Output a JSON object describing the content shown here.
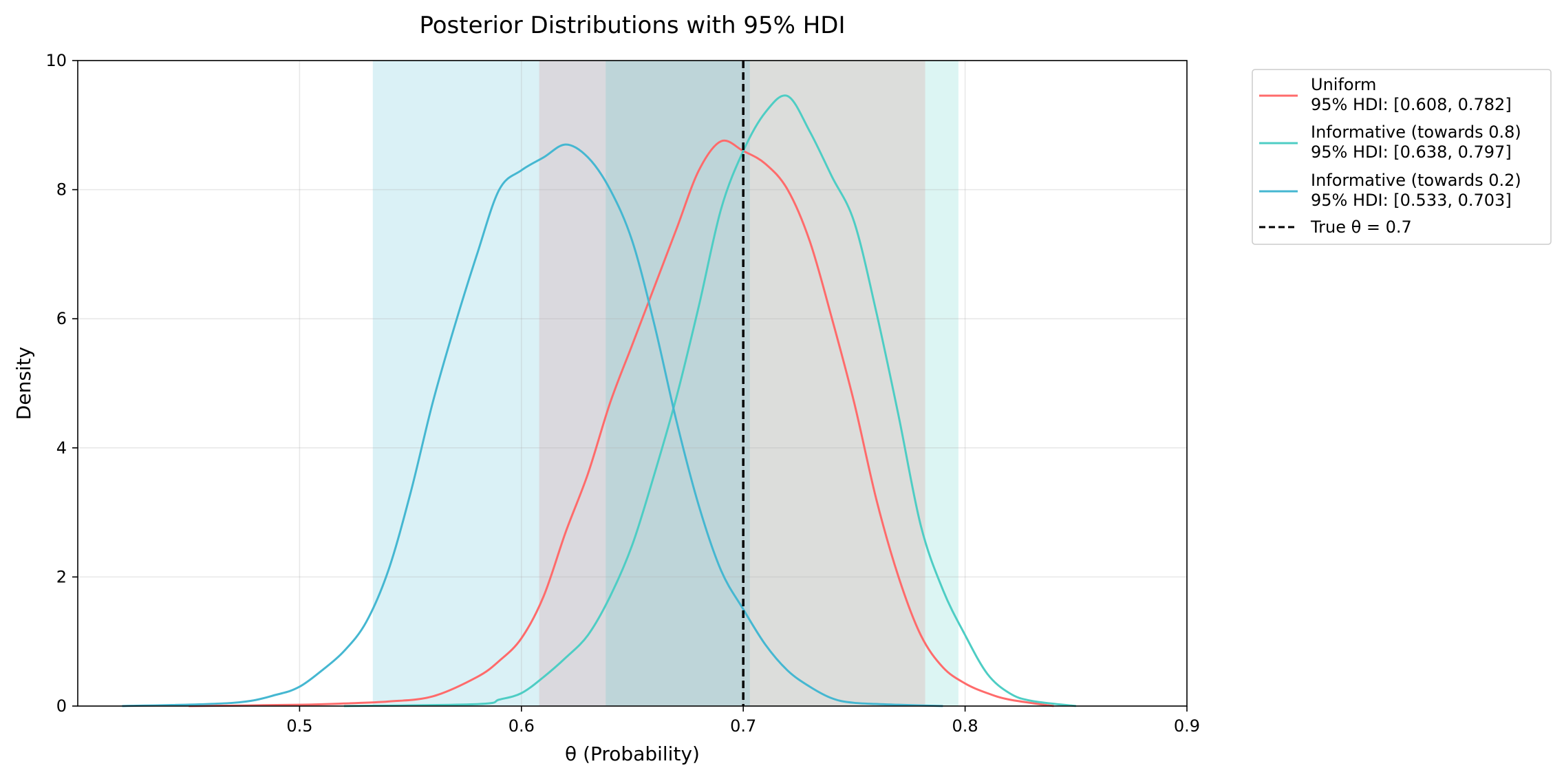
{
  "chart_data": {
    "type": "area",
    "title": "Posterior Distributions with 95% HDI",
    "xlabel": "θ (Probability)",
    "ylabel": "Density",
    "xlim": [
      0.4,
      0.9
    ],
    "ylim": [
      0,
      10
    ],
    "x_ticks": [
      0.5,
      0.6,
      0.7,
      0.8,
      0.9
    ],
    "x_tick_labels": [
      "0.5",
      "0.6",
      "0.7",
      "0.8",
      "0.9"
    ],
    "y_ticks": [
      0,
      2,
      4,
      6,
      8,
      10
    ],
    "y_tick_labels": [
      "0",
      "2",
      "4",
      "6",
      "8",
      "10"
    ],
    "grid": true,
    "legend_position": "outside-upper-right",
    "series": [
      {
        "name": "Uniform",
        "hdi_label": "95% HDI: [0.608, 0.782]",
        "color": "#ff6b6b",
        "hdi": [
          0.608,
          0.782
        ],
        "x": [
          0.45,
          0.5,
          0.52,
          0.54,
          0.56,
          0.58,
          0.59,
          0.6,
          0.61,
          0.62,
          0.63,
          0.64,
          0.65,
          0.66,
          0.67,
          0.68,
          0.69,
          0.7,
          0.71,
          0.72,
          0.73,
          0.74,
          0.75,
          0.76,
          0.77,
          0.78,
          0.79,
          0.8,
          0.81,
          0.82,
          0.84
        ],
        "y": [
          0.0,
          0.02,
          0.04,
          0.07,
          0.15,
          0.45,
          0.7,
          1.05,
          1.7,
          2.7,
          3.6,
          4.7,
          5.6,
          6.5,
          7.4,
          8.3,
          8.75,
          8.6,
          8.4,
          8.0,
          7.2,
          6.0,
          4.7,
          3.2,
          2.0,
          1.1,
          0.6,
          0.35,
          0.2,
          0.1,
          0.0
        ]
      },
      {
        "name": "Informative (towards 0.8)",
        "hdi_label": "95% HDI: [0.638, 0.797]",
        "color": "#4ecdc4",
        "hdi": [
          0.638,
          0.797
        ],
        "x": [
          0.52,
          0.58,
          0.59,
          0.6,
          0.61,
          0.62,
          0.63,
          0.64,
          0.65,
          0.66,
          0.67,
          0.68,
          0.69,
          0.7,
          0.71,
          0.72,
          0.73,
          0.74,
          0.75,
          0.76,
          0.77,
          0.78,
          0.79,
          0.8,
          0.81,
          0.82,
          0.83,
          0.85
        ],
        "y": [
          0.0,
          0.03,
          0.1,
          0.2,
          0.45,
          0.75,
          1.1,
          1.7,
          2.5,
          3.6,
          4.8,
          6.2,
          7.7,
          8.6,
          9.2,
          9.45,
          8.9,
          8.2,
          7.5,
          6.1,
          4.5,
          2.8,
          1.8,
          1.1,
          0.5,
          0.2,
          0.08,
          0.0
        ]
      },
      {
        "name": "Informative (towards 0.2)",
        "hdi_label": "95% HDI: [0.533, 0.703]",
        "color": "#45b7d1",
        "hdi": [
          0.533,
          0.703
        ],
        "x": [
          0.42,
          0.47,
          0.49,
          0.5,
          0.51,
          0.52,
          0.53,
          0.54,
          0.55,
          0.56,
          0.57,
          0.58,
          0.59,
          0.6,
          0.61,
          0.62,
          0.63,
          0.64,
          0.65,
          0.66,
          0.67,
          0.68,
          0.69,
          0.7,
          0.71,
          0.72,
          0.73,
          0.74,
          0.75,
          0.77,
          0.79
        ],
        "y": [
          0.0,
          0.05,
          0.18,
          0.3,
          0.55,
          0.85,
          1.3,
          2.1,
          3.3,
          4.7,
          5.9,
          7.0,
          8.0,
          8.3,
          8.5,
          8.7,
          8.5,
          8.0,
          7.2,
          5.9,
          4.4,
          3.1,
          2.1,
          1.5,
          0.95,
          0.55,
          0.3,
          0.12,
          0.05,
          0.02,
          0.0
        ]
      }
    ],
    "reference_line": {
      "label": "True θ = 0.7",
      "x": 0.7,
      "color": "#000000",
      "style": "dashed"
    }
  }
}
